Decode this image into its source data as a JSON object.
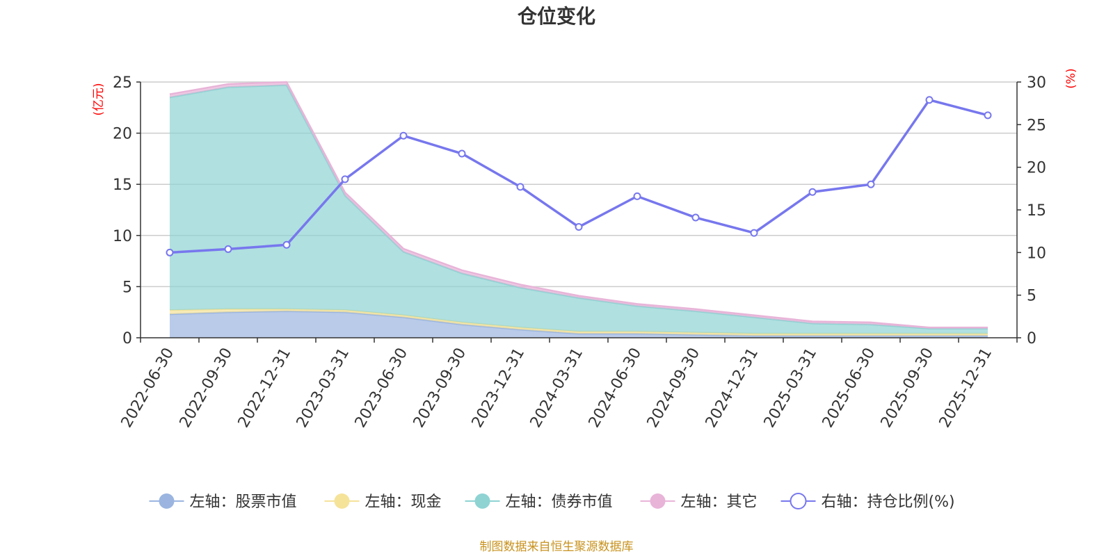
{
  "chart_data": {
    "type": "area",
    "title": "仓位变化",
    "source": "制图数据来自恒生聚源数据库",
    "left_axis": {
      "unit": "(亿元)",
      "ylim": [
        0,
        25
      ],
      "ticks": [
        "0",
        "5",
        "10",
        "15",
        "20",
        "25"
      ]
    },
    "right_axis": {
      "unit": "(%)",
      "ylim": [
        0,
        30
      ],
      "ticks": [
        "0",
        "5",
        "10",
        "15",
        "20",
        "25",
        "30"
      ]
    },
    "categories": [
      "2022-06-30",
      "2022-09-30",
      "2022-12-31",
      "2023-03-31",
      "2023-06-30",
      "2023-09-30",
      "2023-12-31",
      "2024-03-31",
      "2024-06-30",
      "2024-09-30",
      "2024-12-31",
      "2025-03-31",
      "2025-06-30",
      "2025-09-30",
      "2025-12-31"
    ],
    "series": [
      {
        "name": "左轴：股票市值",
        "axis": "left",
        "stack": true,
        "color": "#9bb5e0",
        "values": [
          2.3,
          2.5,
          2.6,
          2.5,
          2.0,
          1.3,
          0.8,
          0.4,
          0.4,
          0.3,
          0.2,
          0.2,
          0.2,
          0.2,
          0.2
        ]
      },
      {
        "name": "左轴：现金",
        "axis": "left",
        "stack": true,
        "color": "#f5e39a",
        "values": [
          0.4,
          0.3,
          0.2,
          0.2,
          0.2,
          0.2,
          0.2,
          0.2,
          0.2,
          0.2,
          0.2,
          0.2,
          0.2,
          0.2,
          0.2
        ]
      },
      {
        "name": "左轴：债券市值",
        "axis": "left",
        "stack": true,
        "color": "#8fd3d3",
        "values": [
          20.8,
          21.7,
          21.9,
          11.2,
          6.2,
          4.8,
          3.9,
          3.3,
          2.5,
          2.1,
          1.6,
          1.0,
          0.9,
          0.5,
          0.5
        ]
      },
      {
        "name": "左轴：其它",
        "axis": "left",
        "stack": true,
        "color": "#e8b4d8",
        "values": [
          0.3,
          0.3,
          0.3,
          0.3,
          0.3,
          0.3,
          0.3,
          0.2,
          0.2,
          0.2,
          0.2,
          0.2,
          0.2,
          0.1,
          0.1
        ]
      },
      {
        "name": "右轴：持仓比例(%)",
        "axis": "right",
        "stack": false,
        "color": "#7777ee",
        "values": [
          10.0,
          10.4,
          10.9,
          18.6,
          23.7,
          21.6,
          17.7,
          13.0,
          16.6,
          14.1,
          12.3,
          17.1,
          18.0,
          27.9,
          26.1
        ]
      }
    ],
    "grid": true,
    "legend_position": "bottom"
  }
}
